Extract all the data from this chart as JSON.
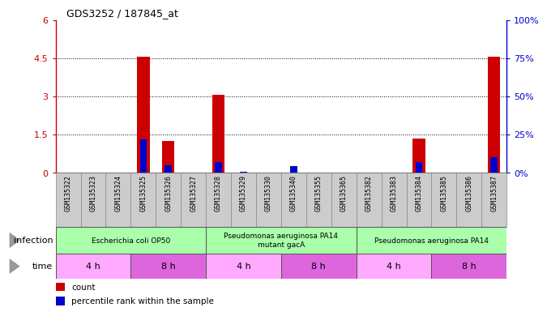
{
  "title": "GDS3252 / 187845_at",
  "samples": [
    "GSM135322",
    "GSM135323",
    "GSM135324",
    "GSM135325",
    "GSM135326",
    "GSM135327",
    "GSM135328",
    "GSM135329",
    "GSM135330",
    "GSM135340",
    "GSM135355",
    "GSM135365",
    "GSM135382",
    "GSM135383",
    "GSM135384",
    "GSM135385",
    "GSM135386",
    "GSM135387"
  ],
  "count_values": [
    0,
    0,
    0,
    4.55,
    1.25,
    0,
    3.05,
    0,
    0,
    0,
    0,
    0,
    0,
    0,
    1.35,
    0,
    0,
    4.55
  ],
  "percentile_values": [
    0,
    0,
    0,
    0.22,
    0.05,
    0,
    0.07,
    0.005,
    0,
    0.04,
    0,
    0,
    0,
    0,
    0.07,
    0,
    0,
    0.1
  ],
  "left_ylim": [
    0,
    6
  ],
  "left_yticks": [
    0,
    1.5,
    3,
    4.5,
    6
  ],
  "right_ylim": [
    0,
    1.0
  ],
  "right_yticks": [
    0,
    0.25,
    0.5,
    0.75,
    1.0
  ],
  "right_yticklabels": [
    "0%",
    "25%",
    "50%",
    "75%",
    "100%"
  ],
  "left_yticklabels": [
    "0",
    "1.5",
    "3",
    "4.5",
    "6"
  ],
  "infection_groups": [
    {
      "label": "Escherichia coli OP50",
      "start": 0,
      "end": 6,
      "color": "#aaffaa"
    },
    {
      "label": "Pseudomonas aeruginosa PA14\nmutant gacA",
      "start": 6,
      "end": 12,
      "color": "#aaffaa"
    },
    {
      "label": "Pseudomonas aeruginosa PA14",
      "start": 12,
      "end": 18,
      "color": "#aaffaa"
    }
  ],
  "time_groups": [
    {
      "label": "4 h",
      "start": 0,
      "end": 3,
      "color": "#ffaaff"
    },
    {
      "label": "8 h",
      "start": 3,
      "end": 6,
      "color": "#dd66dd"
    },
    {
      "label": "4 h",
      "start": 6,
      "end": 9,
      "color": "#ffaaff"
    },
    {
      "label": "8 h",
      "start": 9,
      "end": 12,
      "color": "#dd66dd"
    },
    {
      "label": "4 h",
      "start": 12,
      "end": 15,
      "color": "#ffaaff"
    },
    {
      "label": "8 h",
      "start": 15,
      "end": 18,
      "color": "#dd66dd"
    }
  ],
  "bar_color_count": "#cc0000",
  "bar_color_pct": "#0000cc",
  "bar_width": 0.5,
  "grid_color": "#000000",
  "tick_color_left": "#cc0000",
  "tick_color_right": "#0000cc",
  "title_fontsize": 9,
  "legend_count_label": "count",
  "legend_pct_label": "percentile rank within the sample",
  "bg_color": "#ffffff",
  "plot_bg_color": "#ffffff",
  "sample_bg_color": "#cccccc"
}
